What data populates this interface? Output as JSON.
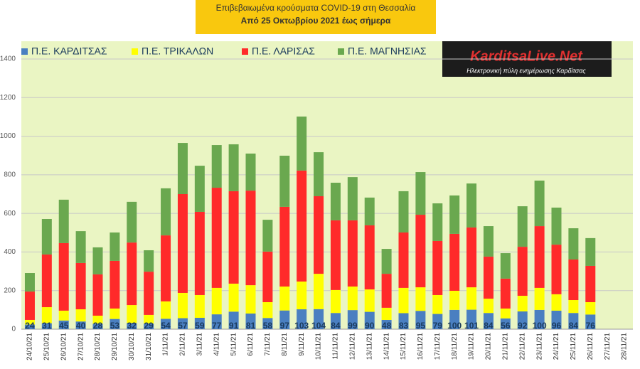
{
  "chart_data": {
    "type": "stacked-bar",
    "title": "Επιβεβαιωμένα κρούσματα COVID-19 στη Θεσσαλία",
    "subtitle": "Από 25 Οκτωβρίου 2021 έως σήμερα",
    "categories": [
      "24/10/21",
      "25/10/21",
      "26/10/21",
      "27/10/21",
      "28/10/21",
      "29/10/21",
      "30/10/21",
      "31/10/21",
      "1/11/21",
      "2/11/21",
      "3/11/21",
      "4/11/21",
      "5/11/21",
      "6/11/21",
      "7/11/21",
      "8/11/21",
      "9/11/21",
      "10/11/21",
      "11/11/21",
      "12/11/21",
      "13/11/21",
      "14/11/21",
      "15/11/21",
      "16/11/21",
      "17/11/21",
      "18/11/21",
      "19/11/21",
      "20/11/21",
      "21/11/21",
      "22/11/21",
      "23/11/21",
      "24/11/21",
      "25/11/21",
      "26/11/21",
      "27/11/21",
      "28/11/21"
    ],
    "series": [
      {
        "name": "Π.Ε. ΚΑΡΔΙΤΣΑΣ",
        "color": "#4a7fc1",
        "values": [
          24,
          31,
          45,
          40,
          28,
          53,
          32,
          29,
          54,
          57,
          59,
          77,
          91,
          81,
          58,
          97,
          103,
          104,
          84,
          99,
          90,
          48,
          83,
          95,
          79,
          100,
          101,
          84,
          56,
          92,
          100,
          96,
          84,
          76,
          null,
          null
        ]
      },
      {
        "name": "Π.Ε. ΤΡΙΚΑΛΩΝ",
        "color": "#ffff00",
        "values": [
          24,
          83,
          51,
          63,
          42,
          54,
          93,
          45,
          90,
          131,
          118,
          137,
          145,
          147,
          82,
          124,
          144,
          183,
          119,
          122,
          116,
          63,
          131,
          122,
          98,
          99,
          116,
          74,
          51,
          81,
          114,
          85,
          67,
          64,
          null,
          null
        ]
      },
      {
        "name": "Π.Ε. ΛΑΡΙΣΑΣ",
        "color": "#ff2a2a",
        "values": [
          147,
          273,
          350,
          240,
          214,
          247,
          324,
          224,
          342,
          512,
          431,
          519,
          479,
          490,
          262,
          413,
          575,
          402,
          361,
          343,
          332,
          176,
          287,
          376,
          280,
          295,
          310,
          218,
          155,
          254,
          320,
          257,
          210,
          188,
          null,
          null
        ]
      },
      {
        "name": "Π.Ε. ΜΑΓΝΗΣΙΑΣ",
        "color": "#6aa84f",
        "values": [
          96,
          184,
          225,
          165,
          140,
          147,
          211,
          111,
          244,
          265,
          239,
          221,
          243,
          192,
          165,
          265,
          280,
          228,
          195,
          224,
          144,
          129,
          214,
          221,
          195,
          199,
          228,
          158,
          132,
          210,
          236,
          192,
          162,
          144,
          null,
          null
        ]
      }
    ],
    "ylim": [
      0,
      1400
    ],
    "yticks": [
      0,
      200,
      400,
      600,
      800,
      1000,
      1200,
      1400
    ],
    "grid": true
  },
  "logo": {
    "title": "KarditsaLive.Net",
    "subtitle": "Ηλεκτρονική πύλη ενημέρωσης Καρδίτσας"
  }
}
